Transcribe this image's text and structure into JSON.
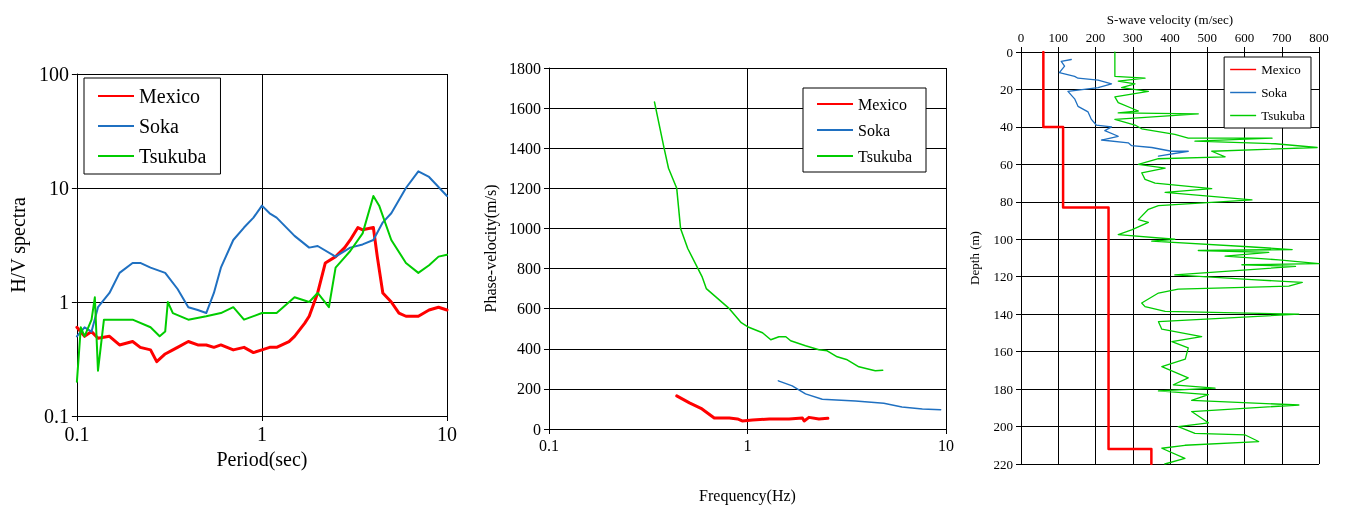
{
  "chart_data": [
    {
      "type": "line",
      "xlabel": "Period(sec)",
      "ylabel": "H/V spectra",
      "log": "xy",
      "grid": true,
      "legend": "top left",
      "marker": "none",
      "line_style": "solid",
      "xlim": [
        0.1,
        10
      ],
      "ylim": [
        0.1,
        100
      ],
      "xticks": [
        0.1,
        1,
        10
      ],
      "yticks": [
        0.1,
        1,
        10,
        100
      ],
      "series": [
        {
          "name": "Mexico",
          "color": "#ff0000",
          "x": [
            0.1,
            0.11,
            0.12,
            0.13,
            0.15,
            0.17,
            0.2,
            0.22,
            0.25,
            0.27,
            0.3,
            0.33,
            0.35,
            0.4,
            0.45,
            0.5,
            0.55,
            0.6,
            0.7,
            0.8,
            0.9,
            1,
            1.1,
            1.2,
            1.4,
            1.5,
            1.7,
            1.8,
            2,
            2.2,
            2.5,
            2.8,
            3,
            3.3,
            3.5,
            4,
            4.2,
            4.5,
            5,
            5.5,
            6,
            7,
            8,
            9,
            10
          ],
          "values": [
            0.6,
            0.5,
            0.55,
            0.48,
            0.5,
            0.42,
            0.45,
            0.4,
            0.38,
            0.3,
            0.35,
            0.38,
            0.4,
            0.45,
            0.42,
            0.42,
            0.4,
            0.42,
            0.38,
            0.4,
            0.36,
            0.38,
            0.4,
            0.4,
            0.45,
            0.5,
            0.65,
            0.75,
            1.2,
            2.2,
            2.5,
            3,
            3.5,
            4.5,
            4.3,
            4.5,
            2.5,
            1.2,
            1,
            0.8,
            0.75,
            0.75,
            0.85,
            0.9,
            0.85
          ]
        },
        {
          "name": "Soka",
          "color": "#1f70c1",
          "x": [
            0.1,
            0.11,
            0.12,
            0.13,
            0.15,
            0.17,
            0.2,
            0.22,
            0.25,
            0.3,
            0.35,
            0.4,
            0.45,
            0.5,
            0.55,
            0.6,
            0.7,
            0.8,
            0.9,
            1,
            1.1,
            1.2,
            1.5,
            1.8,
            2,
            2.5,
            3,
            3.5,
            4,
            4.5,
            5,
            6,
            7,
            8,
            10
          ],
          "values": [
            0.5,
            0.6,
            0.55,
            0.9,
            1.2,
            1.8,
            2.2,
            2.2,
            2,
            1.8,
            1.3,
            0.9,
            0.85,
            0.8,
            1.2,
            2,
            3.5,
            4.5,
            5.5,
            7,
            6,
            5.5,
            3.8,
            3,
            3.1,
            2.5,
            3,
            3.2,
            3.5,
            5,
            6,
            10,
            14,
            12.5,
            8.5
          ]
        },
        {
          "name": "Tsukuba",
          "color": "#00cc00",
          "x": [
            0.1,
            0.105,
            0.11,
            0.12,
            0.125,
            0.13,
            0.14,
            0.15,
            0.2,
            0.25,
            0.28,
            0.3,
            0.31,
            0.33,
            0.4,
            0.5,
            0.6,
            0.7,
            0.8,
            1,
            1.2,
            1.5,
            1.8,
            2,
            2.3,
            2.5,
            3,
            3.5,
            4,
            4.3,
            5,
            6,
            7,
            8,
            9,
            10
          ],
          "values": [
            0.2,
            0.6,
            0.5,
            0.7,
            1.1,
            0.25,
            0.7,
            0.7,
            0.7,
            0.6,
            0.5,
            0.55,
            1,
            0.8,
            0.7,
            0.75,
            0.8,
            0.9,
            0.7,
            0.8,
            0.8,
            1.1,
            1,
            1.2,
            0.9,
            2,
            2.8,
            4,
            8.5,
            7,
            3.5,
            2.2,
            1.8,
            2.1,
            2.5,
            2.6
          ]
        }
      ]
    },
    {
      "type": "line",
      "xlabel": "Frequency(Hz)",
      "ylabel": "Phase-velocity(m/s)",
      "log": "x",
      "grid": true,
      "legend": "top right",
      "marker": "none",
      "line_style": "solid",
      "xlim": [
        0.1,
        10
      ],
      "ylim": [
        0,
        1800
      ],
      "xticks": [
        0.1,
        1,
        10
      ],
      "yticks": [
        0,
        200,
        400,
        600,
        800,
        1000,
        1200,
        1400,
        1600,
        1800
      ],
      "series": [
        {
          "name": "Mexico",
          "color": "#ff0000",
          "x": [
            0.44,
            0.51,
            0.59,
            0.68,
            0.81,
            0.89,
            0.94,
            1.06,
            1.29,
            1.62,
            1.89,
            1.93,
            2.04,
            2.29,
            2.54
          ],
          "values": [
            165,
            130,
            100,
            55,
            55,
            50,
            40,
            45,
            50,
            50,
            55,
            40,
            58,
            50,
            53
          ]
        },
        {
          "name": "Soka",
          "color": "#1f70c1",
          "x": [
            1.43,
            1.68,
            1.96,
            2.38,
            3.5,
            4.86,
            6,
            7.6,
            9.4
          ],
          "values": [
            240,
            215,
            175,
            148,
            140,
            128,
            110,
            100,
            96
          ]
        },
        {
          "name": "Tsukuba",
          "color": "#00cc00",
          "x": [
            0.34,
            0.38,
            0.4,
            0.44,
            0.46,
            0.5,
            0.59,
            0.62,
            0.69,
            0.81,
            0.93,
            1,
            1.19,
            1.31,
            1.44,
            1.56,
            1.65,
            1.96,
            2.29,
            2.52,
            2.83,
            3.18,
            3.64,
            4,
            4.4,
            4.8
          ],
          "values": [
            1630,
            1400,
            1300,
            1200,
            1000,
            900,
            760,
            700,
            660,
            600,
            530,
            510,
            480,
            445,
            460,
            460,
            440,
            415,
            395,
            390,
            360,
            345,
            310,
            300,
            290,
            293
          ]
        }
      ]
    },
    {
      "type": "line",
      "xlabel": "S-wave velocity (m/sec)",
      "ylabel": "Depth (m)",
      "grid": true,
      "legend": "top right",
      "marker": "none",
      "line_style": "solid",
      "xlim": [
        0,
        800
      ],
      "xticks": [
        0,
        100,
        200,
        300,
        400,
        500,
        600,
        700,
        800
      ],
      "ylim": [
        220,
        0
      ],
      "yticks": [
        0,
        20,
        40,
        60,
        80,
        100,
        120,
        140,
        160,
        180,
        200,
        220
      ],
      "series": [
        {
          "name": "Mexico",
          "color": "#ff0000",
          "x": [
            60,
            60,
            113,
            113,
            235,
            235,
            350,
            350
          ],
          "values": [
            0,
            40,
            40,
            83,
            83,
            212,
            212,
            220
          ]
        },
        {
          "name": "Soka",
          "color": "#1f70c1",
          "x": [
            135,
            108,
            117,
            103,
            144,
            153,
            207,
            243,
            207,
            126,
            144,
            153,
            180,
            189,
            202,
            243,
            225,
            261,
            216,
            288,
            297,
            351,
            404,
            449,
            369
          ],
          "values": [
            4,
            5,
            7.5,
            11,
            13,
            14,
            15,
            17,
            19,
            21,
            25,
            29,
            32,
            36,
            39,
            40,
            42,
            45,
            47,
            48.5,
            50,
            51,
            53,
            53,
            55.6
          ]
        },
        {
          "name": "Tsukuba",
          "color": "#00cc00",
          "x": [
            252,
            252,
            333,
            261,
            306,
            270,
            342,
            252,
            261,
            315,
            261,
            476,
            252,
            306,
            324,
            413,
            449,
            674,
            467,
            683,
            795,
            512,
            548,
            369,
            315,
            387,
            324,
            333,
            360,
            512,
            387,
            620,
            369,
            342,
            315,
            342,
            297,
            261,
            413,
            351,
            611,
            728,
            476,
            665,
            548,
            692,
            800,
            593,
            737,
            413,
            620,
            755,
            719,
            422,
            369,
            324,
            333,
            387,
            746,
            369,
            378,
            485,
            405,
            449,
            441,
            378,
            449,
            409,
            521,
            369,
            503,
            458,
            746,
            458,
            503,
            422,
            467,
            602,
            638,
            440,
            378,
            440,
            386
          ],
          "values": [
            0,
            13,
            14,
            15.5,
            17,
            19,
            21,
            24,
            27,
            31.5,
            32.5,
            33,
            36,
            39,
            41,
            44,
            46,
            46,
            47.6,
            49,
            51,
            53,
            56,
            57,
            60,
            62,
            64.5,
            68,
            70,
            73,
            75,
            79,
            82,
            84,
            89.5,
            91,
            95,
            97.5,
            100,
            101,
            104,
            105.5,
            106,
            107,
            109,
            111,
            113,
            113.6,
            114.5,
            119,
            121.6,
            123,
            125,
            126.6,
            128.7,
            134,
            136,
            138.5,
            140,
            144,
            148,
            152,
            154.6,
            158,
            164,
            168,
            174,
            177.7,
            179.5,
            181,
            183,
            186,
            188.5,
            192,
            198,
            200,
            203.6,
            204.5,
            208,
            210,
            211.6,
            217,
            220
          ]
        }
      ]
    }
  ]
}
